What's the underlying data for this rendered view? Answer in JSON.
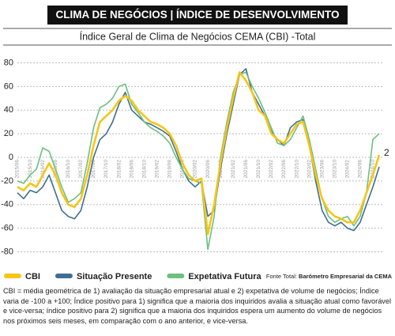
{
  "chart_data": {
    "type": "line",
    "header": "CLIMA DE NEGÓCIOS  | ÍNDICE DE DESENVOLVIMENTO",
    "title": "Índice Geral de Clima de Negócios CEMA (CBI) -Total",
    "categories": [
      "2015/06",
      null,
      "2015/10",
      null,
      "2016/02",
      null,
      "2016/06",
      null,
      "2016/10",
      null,
      "2017/02",
      null,
      "2017/06",
      null,
      "2017/10",
      null,
      "2018/02",
      null,
      "2018/06",
      null,
      "2018/10",
      null,
      "2019/02",
      null,
      "2019/06",
      null,
      "2019/10",
      null,
      "2020/02",
      null,
      "2020/06",
      null,
      "2020/10",
      null,
      "2021/02",
      null,
      "2021/06",
      null,
      "2021/10",
      null,
      "2022/02",
      null,
      "2022/06",
      null,
      "2022/10",
      null,
      "2023/02",
      null,
      "2023/06",
      null,
      "2023/10",
      null,
      "2024/02",
      null,
      "2024/06",
      null,
      "2024/10",
      null
    ],
    "series": [
      {
        "name": "CBI",
        "color": "#f5c518",
        "values": [
          -25,
          -28,
          -22,
          -25,
          -15,
          -5,
          -15,
          -30,
          -40,
          -42,
          -35,
          -15,
          10,
          30,
          35,
          40,
          48,
          52,
          48,
          40,
          35,
          30,
          28,
          25,
          20,
          10,
          -5,
          -15,
          -20,
          -18,
          -65,
          -40,
          -5,
          25,
          50,
          72,
          65,
          55,
          40,
          35,
          20,
          15,
          12,
          20,
          28,
          30,
          10,
          -15,
          -35,
          -45,
          -50,
          -52,
          -55,
          -55,
          -45,
          -30,
          -15,
          2
        ]
      },
      {
        "name": "Situação Presente",
        "color": "#3f6e91",
        "values": [
          -30,
          -35,
          -28,
          -30,
          -25,
          -15,
          -30,
          -45,
          -50,
          -52,
          -45,
          -25,
          0,
          15,
          20,
          30,
          45,
          55,
          40,
          35,
          30,
          28,
          25,
          22,
          18,
          5,
          -10,
          -20,
          -25,
          -20,
          -50,
          -45,
          -10,
          20,
          45,
          70,
          75,
          55,
          45,
          35,
          22,
          15,
          10,
          25,
          30,
          32,
          10,
          -20,
          -45,
          -55,
          -58,
          -55,
          -60,
          -62,
          -55,
          -40,
          -25,
          -8
        ]
      },
      {
        "name": "Expetativa Futura",
        "color": "#6dbf7e",
        "values": [
          -20,
          -22,
          -15,
          -10,
          8,
          5,
          -10,
          -25,
          -38,
          -35,
          -30,
          -5,
          25,
          42,
          45,
          50,
          60,
          62,
          45,
          38,
          30,
          25,
          22,
          18,
          12,
          0,
          -10,
          -18,
          -20,
          -22,
          -78,
          -50,
          0,
          30,
          55,
          70,
          72,
          60,
          50,
          38,
          25,
          12,
          10,
          15,
          25,
          35,
          15,
          -10,
          -35,
          -50,
          -55,
          -52,
          -50,
          -58,
          -50,
          -30,
          15,
          20
        ]
      }
    ],
    "ylim": [
      -85,
      85
    ],
    "yticks": [
      -80,
      -60,
      -40,
      -20,
      0,
      20,
      40,
      60,
      80
    ],
    "grid": true,
    "source": [
      "Fonte Total:",
      "Barómetro Empresarial da CEMA"
    ],
    "footnote": "CBI = média geométrica de 1) avaliação da situação empresarial atual e 2) expetativa de volume de negócios; Índice varia de -100 a +100; Índice positivo para 1) significa que a maioria dos inquiridos avalia a situação atual como favorável e vice-versa; índice positivo para 2) significa que a maioria dos inquiridos espera um aumento do volume de negócios nos próximos seis meses, em comparação com o ano anterior, e vice-versa."
  }
}
